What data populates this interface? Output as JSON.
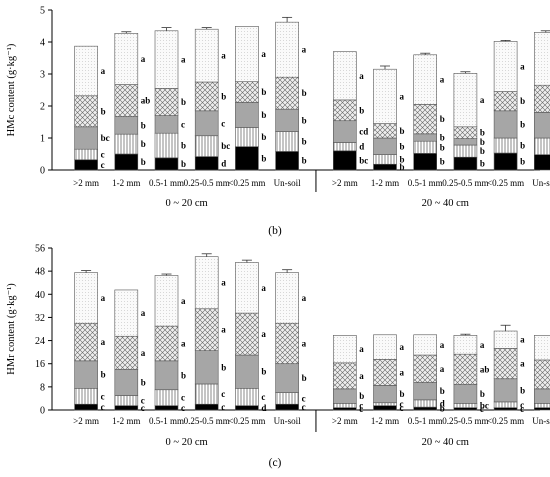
{
  "colors": {
    "black": "#000000",
    "vertical_hatch": "#ffffff",
    "gray": "#a6a6a6",
    "crosshatch": "#e0e0e0",
    "dotted": "#f7f7f7",
    "stroke": "#555555"
  },
  "chart_data": [
    {
      "type": "bar",
      "stacked": true,
      "panel_label": "(b)",
      "ylabel": "HMc content (g·kg⁻¹)",
      "ylim": [
        0,
        5
      ],
      "yticks": [
        0,
        1,
        2,
        3,
        4,
        5
      ],
      "categories": [
        ">2 mm",
        "1-2 mm",
        "0.5-1 mm",
        "0.25-0.5 mm",
        "<0.25 mm",
        "Un-soil",
        ">2 mm",
        "1-2 mm",
        "0.5-1 mm",
        "0.25-0.5 mm",
        "<0.25 mm",
        "Un-soil"
      ],
      "groups": [
        {
          "label": "0 ~ 20 cm",
          "start": 0,
          "end": 5
        },
        {
          "label": "20 ~ 40 cm",
          "start": 6,
          "end": 11
        }
      ],
      "series": [
        {
          "fill": "black",
          "values": [
            0.32,
            0.5,
            0.38,
            0.42,
            0.73,
            0.58,
            0.6,
            0.18,
            0.52,
            0.4,
            0.53,
            0.48
          ],
          "errors": [
            0,
            0,
            0,
            0,
            0,
            0,
            0,
            0,
            0,
            0,
            0,
            0
          ],
          "letters": [
            "c",
            "b",
            "b",
            "d",
            "b",
            "b",
            "bc",
            "b",
            "b",
            "b",
            "b",
            "b"
          ]
        },
        {
          "fill": "vertical_hatch",
          "values": [
            0.33,
            0.62,
            0.77,
            0.65,
            0.6,
            0.62,
            0.26,
            0.3,
            0.38,
            0.38,
            0.47,
            0.52
          ],
          "errors": [
            0,
            0,
            0.18,
            0,
            0.3,
            0,
            0,
            0,
            0,
            0,
            0.25,
            0
          ],
          "letters": [
            "c",
            "b",
            "b",
            "bc",
            "b",
            "b",
            "d",
            "b",
            "b",
            "b",
            "b",
            "b"
          ]
        },
        {
          "fill": "gray",
          "values": [
            0.7,
            0.55,
            0.55,
            0.78,
            0.78,
            0.7,
            0.68,
            0.52,
            0.23,
            0.2,
            0.85,
            0.8
          ],
          "errors": [
            0,
            0,
            0,
            0,
            0,
            0,
            0,
            0,
            0,
            0,
            0,
            0.32
          ],
          "letters": [
            "bc",
            "b",
            "c",
            "c",
            "b",
            "b",
            "cd",
            "b",
            "b",
            "b",
            "b",
            "b"
          ]
        },
        {
          "fill": "crosshatch",
          "values": [
            0.97,
            1.0,
            0.85,
            0.9,
            0.65,
            1.0,
            0.65,
            0.45,
            0.92,
            0.37,
            0.6,
            0.85
          ],
          "errors": [
            0,
            0,
            0,
            0,
            0,
            0.1,
            0,
            0,
            0,
            0,
            0,
            0
          ],
          "letters": [
            "b",
            "ab",
            "b",
            "b",
            "b",
            "b",
            "b",
            "b",
            "b",
            "b",
            "b",
            "b"
          ]
        },
        {
          "fill": "dotted",
          "values": [
            1.55,
            1.6,
            1.8,
            1.65,
            1.73,
            1.72,
            1.51,
            1.7,
            1.55,
            1.67,
            1.57,
            1.65
          ],
          "errors": [
            0,
            0.05,
            0.1,
            0.05,
            0,
            0.15,
            0,
            0.1,
            0.05,
            0.05,
            0.03,
            0.05
          ],
          "letters": [
            "a",
            "a",
            "a",
            "a",
            "a",
            "a",
            "a",
            "a",
            "a",
            "a",
            "a",
            "a"
          ]
        }
      ]
    },
    {
      "type": "bar",
      "stacked": true,
      "panel_label": "(c)",
      "ylabel": "HMr content (g·kg⁻¹)",
      "ylim": [
        0,
        56
      ],
      "yticks": [
        0,
        8,
        16,
        24,
        32,
        40,
        48,
        56
      ],
      "categories": [
        ">2 mm",
        "1-2 mm",
        "0.5-1 mm",
        "0.25-0.5 mm",
        "<0.25 mm",
        "Un-soil",
        ">2 mm",
        "1-2 mm",
        "0.5-1 mm",
        "0.25-0.5 mm",
        "<0.25 mm",
        "Un-soil"
      ],
      "groups": [
        {
          "label": "0 ~ 20 cm",
          "start": 0,
          "end": 5
        },
        {
          "label": "20 ~ 40 cm",
          "start": 6,
          "end": 11
        }
      ],
      "series": [
        {
          "fill": "black",
          "values": [
            2.0,
            1.5,
            1.5,
            2.0,
            1.5,
            2.0,
            0.8,
            1.5,
            1.0,
            0.8,
            0.8,
            0.8
          ],
          "errors": [
            0,
            0,
            0,
            0,
            0,
            0,
            0,
            0,
            0,
            0,
            0,
            0
          ],
          "letters": [
            "c",
            "c",
            "c",
            "c",
            "d",
            "c",
            "c",
            "c",
            "b",
            "c",
            "c",
            "c"
          ]
        },
        {
          "fill": "vertical_hatch",
          "values": [
            5.5,
            3.5,
            5.5,
            7.0,
            6.0,
            4.0,
            1.5,
            1.0,
            2.5,
            1.5,
            2.0,
            1.5
          ],
          "errors": [
            0.6,
            0,
            0.8,
            2.5,
            0,
            0,
            0,
            0,
            0,
            0,
            0,
            0
          ],
          "letters": [
            "c",
            "c",
            "c",
            "c",
            "c",
            "c",
            "c",
            "c",
            "d",
            "bc",
            "c",
            "c"
          ]
        },
        {
          "fill": "gray",
          "values": [
            9.5,
            9.0,
            10.0,
            11.5,
            11.5,
            10.0,
            5.0,
            6.0,
            6.0,
            6.5,
            8.0,
            5.0
          ],
          "errors": [
            2.0,
            0,
            0,
            0,
            0,
            0,
            0,
            0,
            0,
            0,
            0,
            0
          ],
          "letters": [
            "b",
            "b",
            "b",
            "b",
            "b",
            "b",
            "b",
            "b",
            "b",
            "b",
            "b",
            "b"
          ]
        },
        {
          "fill": "crosshatch",
          "values": [
            13.0,
            11.5,
            12.0,
            14.5,
            14.5,
            14.0,
            9.0,
            9.0,
            9.5,
            10.5,
            10.5,
            10.0
          ],
          "errors": [
            0,
            0,
            0,
            0,
            0,
            0,
            0,
            0,
            0,
            2.0,
            0,
            0
          ],
          "letters": [
            "a",
            "a",
            "a",
            "a",
            "a",
            "a",
            "a",
            "a",
            "a",
            "ab",
            "a",
            "a"
          ]
        },
        {
          "fill": "dotted",
          "values": [
            17.5,
            16.0,
            17.5,
            18.0,
            17.5,
            17.5,
            9.5,
            8.5,
            7.0,
            6.5,
            6.0,
            8.5
          ],
          "errors": [
            0.7,
            0,
            0.5,
            1.0,
            0.8,
            1.0,
            0,
            0,
            0,
            0.4,
            2.0,
            0
          ],
          "letters": [
            "a",
            "a",
            "a",
            "a",
            "a",
            "a",
            "a",
            "a",
            "a",
            "a",
            "a",
            "a"
          ]
        }
      ]
    }
  ]
}
